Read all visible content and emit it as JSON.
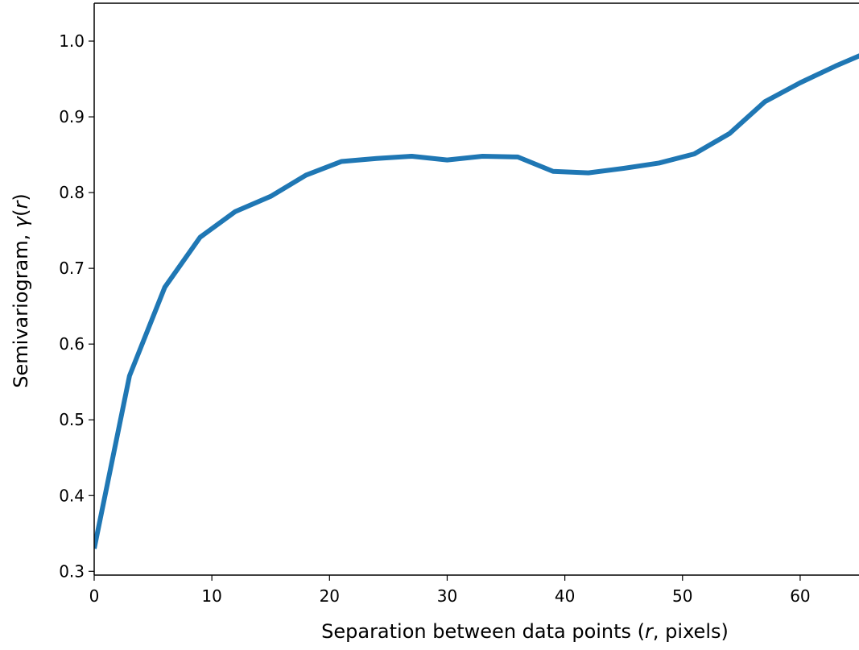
{
  "chart_data": {
    "type": "line",
    "title": "",
    "xlabel_parts": [
      "Separation between data points (",
      "r",
      ", pixels)"
    ],
    "ylabel_parts": [
      "Semivariogram, ",
      "γ",
      "(",
      "r",
      ")"
    ],
    "xlim": [
      0,
      65
    ],
    "ylim": [
      0.295,
      1.05
    ],
    "xticks": [
      0,
      10,
      20,
      30,
      40,
      50,
      60
    ],
    "xtick_labels": [
      "0",
      "10",
      "20",
      "30",
      "40",
      "50",
      "60"
    ],
    "yticks": [
      0.3,
      0.4,
      0.5,
      0.6,
      0.7,
      0.8,
      0.9,
      1.0
    ],
    "ytick_labels": [
      "0.3",
      "0.4",
      "0.5",
      "0.6",
      "0.7",
      "0.8",
      "0.9",
      "1.0"
    ],
    "grid": false,
    "legend": false,
    "series": [
      {
        "color": "#1f77b4",
        "x": [
          0,
          3,
          6,
          9,
          12,
          15,
          18,
          21,
          24,
          27,
          30,
          33,
          36,
          39,
          42,
          45,
          48,
          51,
          54,
          57,
          60,
          63,
          66
        ],
        "y": [
          0.33,
          0.558,
          0.675,
          0.741,
          0.775,
          0.795,
          0.823,
          0.841,
          0.845,
          0.848,
          0.843,
          0.848,
          0.847,
          0.828,
          0.826,
          0.832,
          0.839,
          0.851,
          0.878,
          0.92,
          0.945,
          0.967,
          0.987
        ]
      }
    ]
  }
}
